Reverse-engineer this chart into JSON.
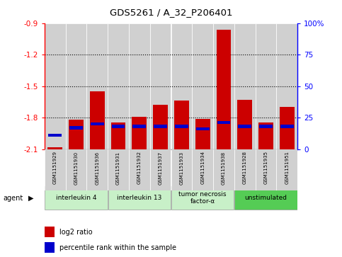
{
  "title": "GDS5261 / A_32_P206401",
  "samples": [
    "GSM1151929",
    "GSM1151930",
    "GSM1151936",
    "GSM1151931",
    "GSM1151932",
    "GSM1151937",
    "GSM1151933",
    "GSM1151934",
    "GSM1151938",
    "GSM1151928",
    "GSM1151935",
    "GSM1151951"
  ],
  "log2_ratio": [
    -2.08,
    -1.82,
    -1.55,
    -1.85,
    -1.79,
    -1.68,
    -1.64,
    -1.81,
    -0.96,
    -1.63,
    -1.85,
    -1.7
  ],
  "pct_rank": [
    11,
    17,
    20,
    18,
    18,
    18,
    18,
    16,
    21,
    18,
    18,
    18
  ],
  "ylim_left": [
    -2.1,
    -0.9
  ],
  "yticks_left": [
    -2.1,
    -1.8,
    -1.5,
    -1.2,
    -0.9
  ],
  "yticks_right": [
    0,
    25,
    50,
    75,
    100
  ],
  "bar_color": "#cc0000",
  "pct_color": "#0000cc",
  "col_bg_color": "#d0d0d0",
  "agent_groups": [
    {
      "label": "interleukin 4",
      "start": 0,
      "end": 3,
      "color": "#c8f0c8"
    },
    {
      "label": "interleukin 13",
      "start": 3,
      "end": 6,
      "color": "#c8f0c8"
    },
    {
      "label": "tumor necrosis\nfactor-α",
      "start": 6,
      "end": 9,
      "color": "#c8f0c8"
    },
    {
      "label": "unstimulated",
      "start": 9,
      "end": 12,
      "color": "#55cc55"
    }
  ],
  "legend_items": [
    {
      "label": "log2 ratio",
      "color": "#cc0000"
    },
    {
      "label": "percentile rank within the sample",
      "color": "#0000cc"
    }
  ]
}
